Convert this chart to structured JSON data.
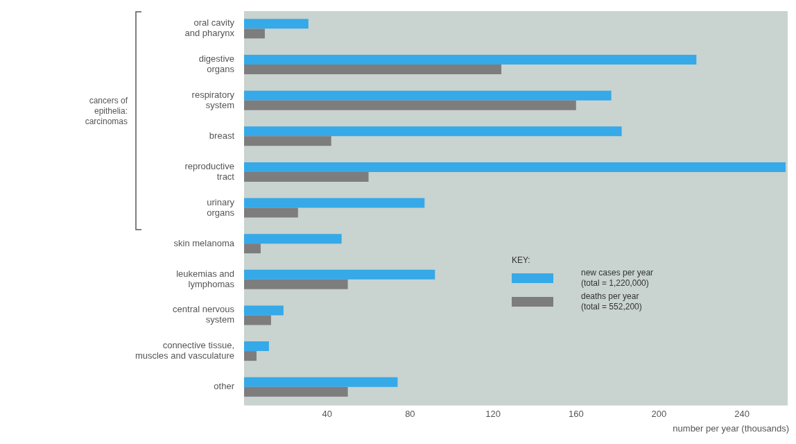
{
  "chart_data": {
    "type": "bar",
    "orientation": "horizontal",
    "categories": [
      "oral cavity\nand pharynx",
      "digestive\norgans",
      "respiratory\nsystem",
      "breast",
      "reproductive\ntract",
      "urinary\norgans",
      "skin melanoma",
      "leukemias and\nlymphomas",
      "central nervous\nsystem",
      "connective tissue,\nmuscles and vasculature",
      "other"
    ],
    "series": [
      {
        "name": "new cases per year\n(total = 1,220,000)",
        "color": "#36a9e8",
        "values": [
          31,
          218,
          177,
          182,
          261,
          87,
          47,
          92,
          19,
          12,
          74
        ]
      },
      {
        "name": "deaths per year\n(total = 552,200)",
        "color": "#7d7d7d",
        "values": [
          10,
          124,
          160,
          42,
          60,
          26,
          8,
          50,
          13,
          6,
          50
        ]
      }
    ],
    "xlim": [
      0,
      262
    ],
    "xticks": [
      40,
      80,
      120,
      160,
      200,
      240
    ],
    "xlabel": "number per year (thousands)",
    "legend_title": "KEY:",
    "legend": "right",
    "grid": false,
    "annotations": [
      "cancers of\nepithelia:\ncarcinomas"
    ]
  }
}
